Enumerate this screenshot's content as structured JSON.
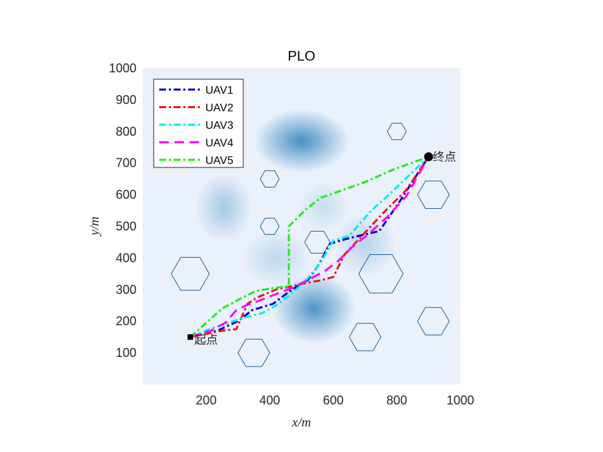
{
  "chart_data": {
    "type": "line",
    "title": "PLO",
    "xlabel": "x/m",
    "ylabel": "y/m",
    "xlim": [
      0,
      1000
    ],
    "ylim": [
      0,
      1000
    ],
    "xticks": [
      200,
      400,
      600,
      800,
      1000
    ],
    "yticks": [
      100,
      200,
      300,
      400,
      500,
      600,
      700,
      800,
      900,
      1000
    ],
    "grid": false,
    "legend_position": "top-left",
    "background_color": "#eaf1fb",
    "threat_color": "#3d8ac2",
    "obstacle_color": "#1f5f92",
    "threat_areas": [
      {
        "cx": 500,
        "cy": 770,
        "sx": 75,
        "sy": 50,
        "a": 0.95
      },
      {
        "cx": 540,
        "cy": 240,
        "sx": 65,
        "sy": 55,
        "a": 0.9
      },
      {
        "cx": 255,
        "cy": 560,
        "sx": 45,
        "sy": 55,
        "a": 0.4
      },
      {
        "cx": 420,
        "cy": 400,
        "sx": 55,
        "sy": 45,
        "a": 0.25
      },
      {
        "cx": 700,
        "cy": 440,
        "sx": 50,
        "sy": 50,
        "a": 0.3
      },
      {
        "cx": 570,
        "cy": 560,
        "sx": 40,
        "sy": 40,
        "a": 0.2
      }
    ],
    "obstacles": [
      {
        "cx": 800,
        "cy": 800,
        "r": 30
      },
      {
        "cx": 400,
        "cy": 650,
        "r": 30
      },
      {
        "cx": 915,
        "cy": 600,
        "r": 50
      },
      {
        "cx": 400,
        "cy": 500,
        "r": 30
      },
      {
        "cx": 550,
        "cy": 450,
        "r": 40
      },
      {
        "cx": 150,
        "cy": 350,
        "r": 60
      },
      {
        "cx": 750,
        "cy": 350,
        "r": 70
      },
      {
        "cx": 915,
        "cy": 200,
        "r": 50
      },
      {
        "cx": 700,
        "cy": 150,
        "r": 50
      },
      {
        "cx": 350,
        "cy": 100,
        "r": 50
      }
    ],
    "series": [
      {
        "name": "UAV1",
        "color": "#0000cd",
        "dash": "10 4 3 4",
        "points": [
          [
            150,
            150
          ],
          [
            235,
            170
          ],
          [
            300,
            200
          ],
          [
            345,
            235
          ],
          [
            410,
            255
          ],
          [
            470,
            300
          ],
          [
            520,
            330
          ],
          [
            555,
            380
          ],
          [
            590,
            445
          ],
          [
            640,
            460
          ],
          [
            680,
            470
          ],
          [
            745,
            485
          ],
          [
            810,
            580
          ],
          [
            900,
            720
          ]
        ]
      },
      {
        "name": "UAV2",
        "color": "#e31a1a",
        "dash": "10 4 3 4",
        "points": [
          [
            150,
            150
          ],
          [
            250,
            170
          ],
          [
            295,
            175
          ],
          [
            330,
            255
          ],
          [
            360,
            275
          ],
          [
            420,
            300
          ],
          [
            465,
            310
          ],
          [
            510,
            320
          ],
          [
            565,
            330
          ],
          [
            600,
            340
          ],
          [
            635,
            410
          ],
          [
            690,
            470
          ],
          [
            760,
            545
          ],
          [
            830,
            615
          ],
          [
            900,
            720
          ]
        ]
      },
      {
        "name": "UAV3",
        "color": "#00eaf0",
        "dash": "10 4 3 4",
        "points": [
          [
            150,
            150
          ],
          [
            210,
            175
          ],
          [
            255,
            190
          ],
          [
            315,
            210
          ],
          [
            375,
            225
          ],
          [
            420,
            250
          ],
          [
            460,
            280
          ],
          [
            515,
            330
          ],
          [
            560,
            385
          ],
          [
            600,
            455
          ],
          [
            650,
            470
          ],
          [
            720,
            550
          ],
          [
            775,
            600
          ],
          [
            900,
            720
          ]
        ]
      },
      {
        "name": "UAV4",
        "color": "#ff00ff",
        "dash": "14 8",
        "points": [
          [
            150,
            150
          ],
          [
            215,
            170
          ],
          [
            260,
            195
          ],
          [
            295,
            235
          ],
          [
            325,
            250
          ],
          [
            380,
            270
          ],
          [
            430,
            290
          ],
          [
            470,
            305
          ],
          [
            520,
            330
          ],
          [
            575,
            360
          ],
          [
            615,
            390
          ],
          [
            660,
            435
          ],
          [
            710,
            475
          ],
          [
            770,
            530
          ],
          [
            830,
            595
          ],
          [
            900,
            720
          ]
        ]
      },
      {
        "name": "UAV5",
        "color": "#1aee1a",
        "dash": "10 4 3 4",
        "points": [
          [
            150,
            150
          ],
          [
            200,
            195
          ],
          [
            250,
            240
          ],
          [
            305,
            270
          ],
          [
            355,
            295
          ],
          [
            410,
            305
          ],
          [
            460,
            310
          ],
          [
            460,
            500
          ],
          [
            510,
            550
          ],
          [
            560,
            590
          ],
          [
            630,
            615
          ],
          [
            700,
            640
          ],
          [
            790,
            680
          ],
          [
            900,
            720
          ]
        ]
      }
    ],
    "start_point": {
      "x": 150,
      "y": 150,
      "label": "起点"
    },
    "end_point": {
      "x": 900,
      "y": 720,
      "label": "终点"
    }
  }
}
